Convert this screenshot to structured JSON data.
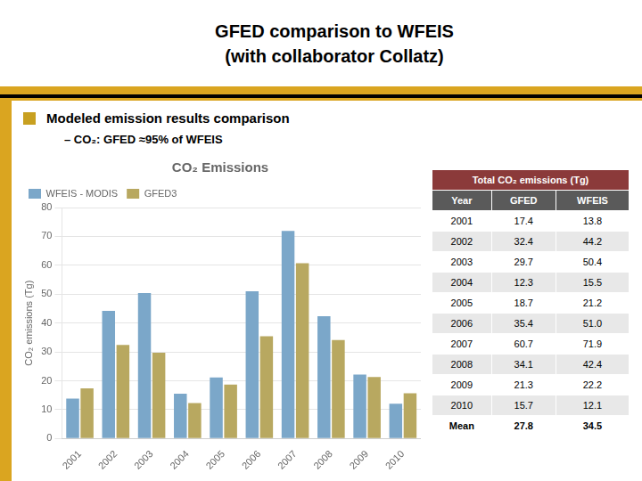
{
  "chart_data": {
    "type": "bar",
    "title": "CO₂ Emissions",
    "annotations": [
      "GFED comparison to WFEIS",
      "(with collaborator Collatz)",
      "Modeled emission results comparison",
      "– CO₂: GFED ≈95% of WFEIS"
    ],
    "categories": [
      "2001",
      "2002",
      "2003",
      "2004",
      "2005",
      "2006",
      "2007",
      "2008",
      "2009",
      "2010"
    ],
    "series": [
      {
        "name": "WFEIS - MODIS",
        "color": "#7BA7C9",
        "values": [
          13.8,
          44.2,
          50.4,
          15.5,
          21.2,
          51.0,
          71.9,
          42.4,
          22.2,
          12.1
        ]
      },
      {
        "name": "GFED3",
        "color": "#B8A860",
        "values": [
          17.4,
          32.4,
          29.7,
          12.3,
          18.7,
          35.4,
          60.7,
          34.1,
          21.3,
          15.7
        ]
      }
    ],
    "ylabel": "CO₂ emissions (Tg)",
    "ylim": [
      0,
      80
    ],
    "yticks": [
      0,
      10,
      20,
      30,
      40,
      50,
      60,
      70,
      80
    ],
    "grid": true,
    "legend": "upper left",
    "table": {
      "title": "Total CO₂ emissions (Tg)",
      "columns": [
        "Year",
        "GFED",
        "WFEIS"
      ],
      "rows": [
        [
          "2001",
          "17.4",
          "13.8"
        ],
        [
          "2002",
          "32.4",
          "44.2"
        ],
        [
          "2003",
          "29.7",
          "50.4"
        ],
        [
          "2004",
          "12.3",
          "15.5"
        ],
        [
          "2005",
          "18.7",
          "21.2"
        ],
        [
          "2006",
          "35.4",
          "51.0"
        ],
        [
          "2007",
          "60.7",
          "71.9"
        ],
        [
          "2008",
          "34.1",
          "42.4"
        ],
        [
          "2009",
          "21.3",
          "22.2"
        ],
        [
          "2010",
          "15.7",
          "12.1"
        ],
        [
          "Mean",
          "27.8",
          "34.5"
        ]
      ]
    }
  }
}
